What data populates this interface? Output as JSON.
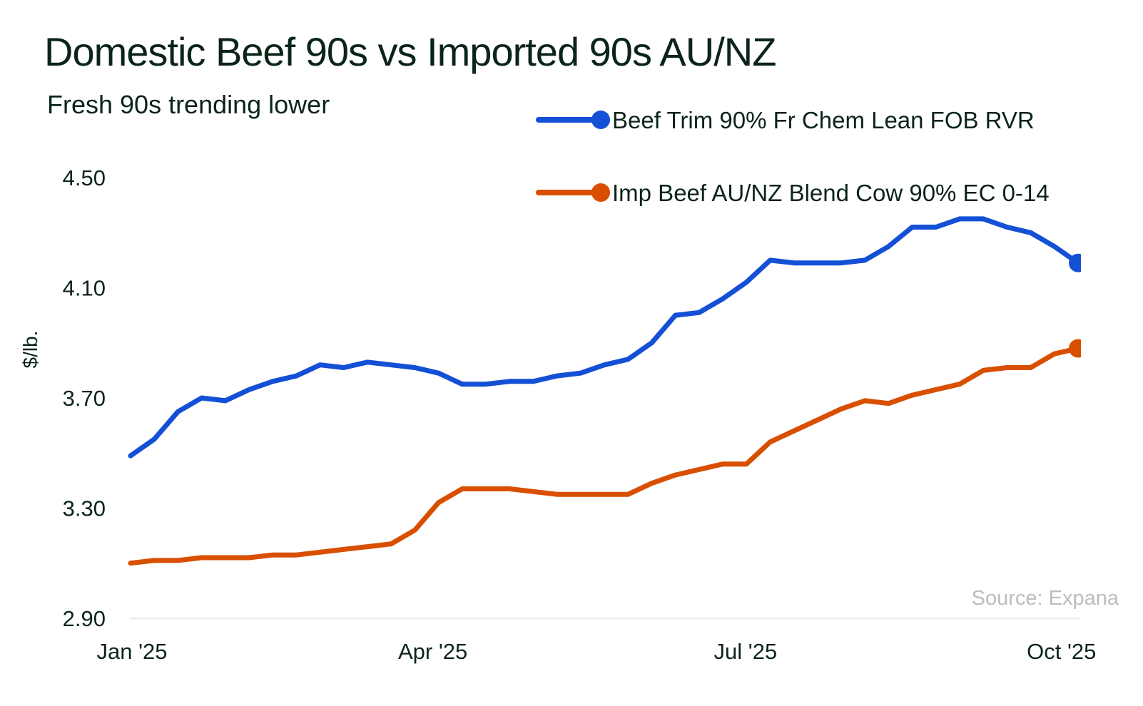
{
  "chart_data": {
    "type": "line",
    "title": "Domestic Beef 90s vs Imported 90s AU/NZ",
    "subtitle": "Fresh 90s trending lower",
    "xlabel": "",
    "ylabel": "$/lb.",
    "ylim": [
      2.9,
      4.5
    ],
    "yticks": [
      "4.50",
      "4.10",
      "3.70",
      "3.30",
      "2.90"
    ],
    "ytick_values": [
      4.5,
      4.1,
      3.7,
      3.3,
      2.9
    ],
    "xticks": [
      {
        "label": "Jan '25",
        "week": 0
      },
      {
        "label": "Apr '25",
        "week": 12.7
      },
      {
        "label": "Jul '25",
        "week": 25.9
      },
      {
        "label": "Oct '25",
        "week": 39
      }
    ],
    "x_unit": "weeks since Jan 1 2025",
    "x": [
      0,
      1,
      2,
      3,
      4,
      5,
      6,
      7,
      8,
      9,
      10,
      11,
      12,
      13,
      14,
      15,
      16,
      17,
      18,
      19,
      20,
      21,
      22,
      23,
      24,
      25,
      26,
      27,
      28,
      29,
      30,
      31,
      32,
      33,
      34,
      35,
      36,
      37,
      38,
      39,
      40
    ],
    "series": [
      {
        "name": "Beef Trim 90% Fr Chem Lean FOB RVR",
        "color": "#1450d6",
        "values": [
          3.49,
          3.55,
          3.65,
          3.7,
          3.69,
          3.73,
          3.76,
          3.78,
          3.82,
          3.81,
          3.83,
          3.82,
          3.81,
          3.79,
          3.75,
          3.75,
          3.76,
          3.76,
          3.78,
          3.79,
          3.82,
          3.84,
          3.9,
          4.0,
          4.01,
          4.06,
          4.12,
          4.2,
          4.19,
          4.19,
          4.19,
          4.2,
          4.25,
          4.32,
          4.32,
          4.35,
          4.35,
          4.32,
          4.3,
          4.25,
          4.19
        ]
      },
      {
        "name": "Imp Beef AU/NZ Blend Cow 90% EC 0-14",
        "color": "#d94f00",
        "values": [
          3.1,
          3.11,
          3.11,
          3.12,
          3.12,
          3.12,
          3.13,
          3.13,
          3.14,
          3.15,
          3.16,
          3.17,
          3.22,
          3.32,
          3.37,
          3.37,
          3.37,
          3.36,
          3.35,
          3.35,
          3.35,
          3.35,
          3.39,
          3.42,
          3.44,
          3.46,
          3.46,
          3.54,
          3.58,
          3.62,
          3.66,
          3.69,
          3.68,
          3.71,
          3.73,
          3.75,
          3.8,
          3.81,
          3.81,
          3.86,
          3.88
        ]
      }
    ],
    "legend_position": "top-right",
    "grid": false,
    "source": "Source: Expana",
    "baseline_color": "#eeeeee"
  }
}
